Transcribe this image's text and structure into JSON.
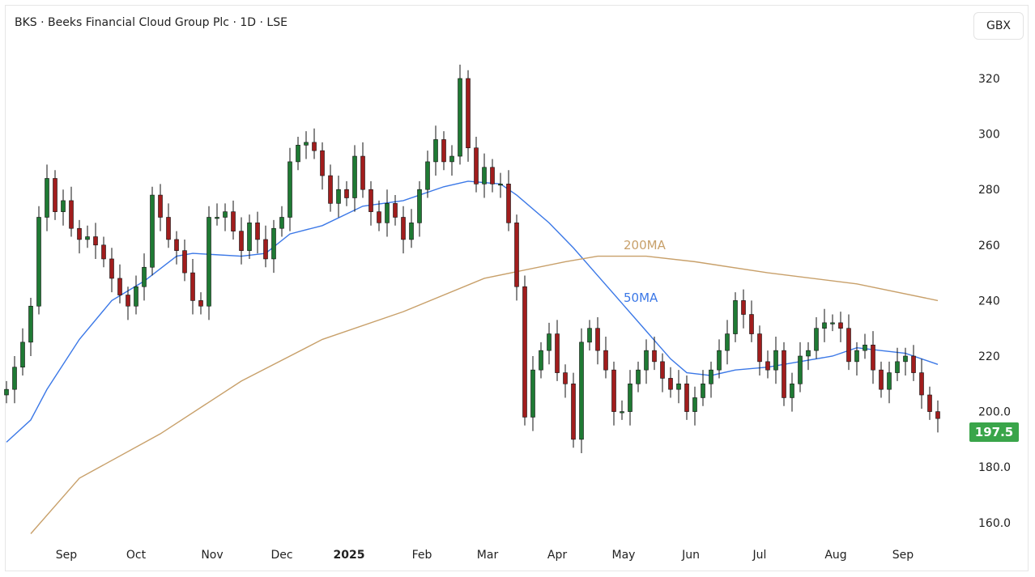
{
  "header": {
    "title": "BKS · Beeks Financial Cloud Group Plc · 1D · LSE",
    "currency_button": "GBX"
  },
  "chart_data": {
    "type": "candlestick",
    "title": "BKS · Beeks Financial Cloud Group Plc · 1D · LSE",
    "ylabel": "GBX",
    "ylim": [
      150,
      330
    ],
    "y_ticks": [
      "320",
      "300",
      "280",
      "260",
      "240",
      "220",
      "200.0",
      "180.0",
      "160.0"
    ],
    "y_tick_values": [
      320,
      300,
      280,
      260,
      240,
      220,
      200,
      180,
      160
    ],
    "x_ticks": [
      {
        "label": "Sep",
        "i": 7.4
      },
      {
        "label": "Oct",
        "i": 16
      },
      {
        "label": "Nov",
        "i": 25.4
      },
      {
        "label": "Dec",
        "i": 34
      },
      {
        "label": "2025",
        "i": 42.3,
        "bold": true
      },
      {
        "label": "Feb",
        "i": 51.3
      },
      {
        "label": "Mar",
        "i": 59.4
      },
      {
        "label": "Apr",
        "i": 68
      },
      {
        "label": "May",
        "i": 76.2
      },
      {
        "label": "Jun",
        "i": 84.5
      },
      {
        "label": "Jul",
        "i": 93
      },
      {
        "label": "Aug",
        "i": 102.4
      },
      {
        "label": "Sep",
        "i": 110.7
      }
    ],
    "close": [
      208,
      216,
      225,
      238,
      270,
      284,
      272,
      276,
      266,
      262,
      263,
      260,
      255,
      248,
      242,
      238,
      245,
      252,
      278,
      270,
      262,
      258,
      250,
      240,
      238,
      270,
      270,
      272,
      265,
      258,
      268,
      262,
      255,
      266,
      270,
      290,
      296,
      297,
      294,
      285,
      275,
      280,
      277,
      292,
      280,
      272,
      268,
      275,
      270,
      262,
      268,
      280,
      290,
      298,
      290,
      292,
      320,
      295,
      282,
      288,
      282,
      282,
      268,
      245,
      198,
      215,
      222,
      228,
      214,
      210,
      190,
      225,
      230,
      222,
      215,
      200,
      200,
      210,
      215,
      222,
      218,
      212,
      208,
      210,
      200,
      205,
      210,
      215,
      222,
      228,
      240,
      235,
      228,
      218,
      215,
      222,
      205,
      210,
      220,
      222,
      230,
      232,
      232,
      230,
      218,
      222,
      224,
      215,
      208,
      214,
      218,
      220,
      214,
      206,
      200,
      197.5
    ],
    "last_price": "197.5",
    "series": [
      {
        "name": "50MA",
        "color": "#3b78e7",
        "points": [
          [
            0,
            189
          ],
          [
            3,
            197
          ],
          [
            5,
            208
          ],
          [
            9,
            226
          ],
          [
            13,
            240
          ],
          [
            17,
            247
          ],
          [
            21,
            256
          ],
          [
            23,
            257
          ],
          [
            29,
            256
          ],
          [
            32,
            257
          ],
          [
            35,
            264
          ],
          [
            39,
            267
          ],
          [
            44,
            274
          ],
          [
            49,
            276
          ],
          [
            54,
            281
          ],
          [
            57,
            283
          ],
          [
            61,
            282
          ],
          [
            63,
            278
          ],
          [
            67,
            268
          ],
          [
            70,
            259
          ],
          [
            73,
            249
          ],
          [
            76,
            239
          ],
          [
            79,
            229
          ],
          [
            82,
            219
          ],
          [
            84,
            214
          ],
          [
            87,
            213
          ],
          [
            90,
            215
          ],
          [
            94,
            216
          ],
          [
            98,
            218
          ],
          [
            102,
            220
          ],
          [
            105,
            223
          ],
          [
            108,
            222
          ],
          [
            111,
            221
          ],
          [
            115,
            217
          ]
        ]
      },
      {
        "name": "200MA",
        "color": "#c8a06a",
        "points": [
          [
            3,
            156
          ],
          [
            9,
            176
          ],
          [
            19,
            192
          ],
          [
            29,
            211
          ],
          [
            39,
            226
          ],
          [
            49,
            236
          ],
          [
            59,
            248
          ],
          [
            69,
            254
          ],
          [
            73,
            256
          ],
          [
            79,
            256
          ],
          [
            85,
            254
          ],
          [
            94,
            250
          ],
          [
            105,
            246
          ],
          [
            115,
            240
          ]
        ]
      }
    ],
    "annotations": [
      {
        "text": "200MA",
        "series": "200MA"
      },
      {
        "text": "50MA",
        "series": "50MA"
      }
    ],
    "colors": {
      "up": "#1f7a34",
      "down": "#a11d1d",
      "wick": "#111111"
    }
  }
}
